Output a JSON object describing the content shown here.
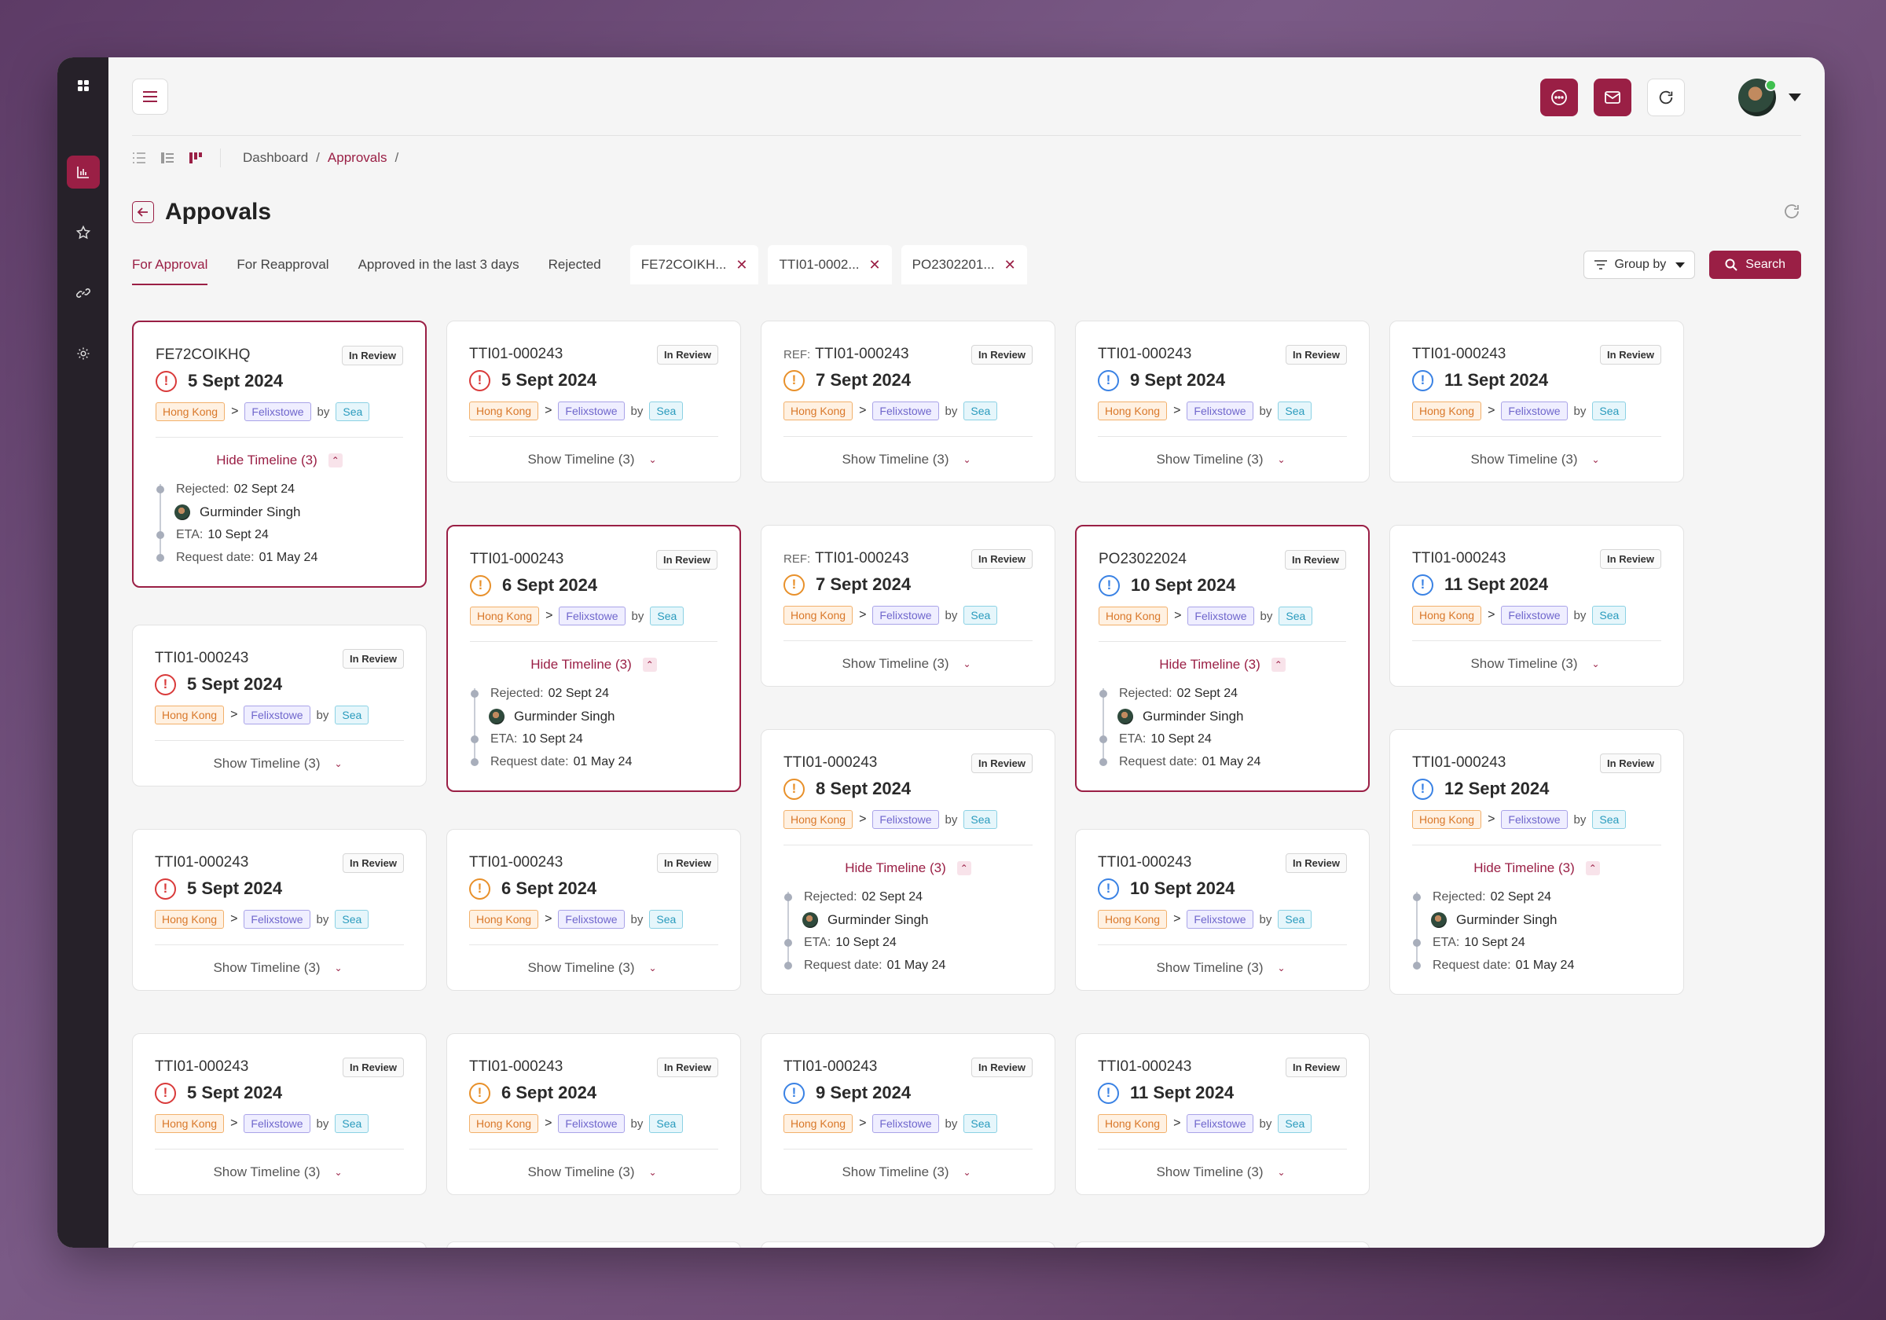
{
  "topbar": {
    "icons": [
      "chat-icon",
      "mail-icon",
      "refresh-icon"
    ]
  },
  "breadcrumb": {
    "items": [
      "Dashboard",
      "Approvals"
    ],
    "separator": "/"
  },
  "page": {
    "title": "Appovals"
  },
  "tabs": [
    {
      "label": "For Approval",
      "active": true
    },
    {
      "label": "For Reapproval",
      "active": false
    },
    {
      "label": "Approved in the last 3 days",
      "active": false
    },
    {
      "label": "Rejected",
      "active": false
    }
  ],
  "filter_tabs": [
    {
      "label": "FE72COIKH..."
    },
    {
      "label": "TTI01-0002..."
    },
    {
      "label": "PO2302201..."
    }
  ],
  "toolbar": {
    "group_by_label": "Group by",
    "search_label": "Search"
  },
  "card_common": {
    "status": "In Review",
    "origin": "Hong Kong",
    "destination": "Felixstowe",
    "by": "by",
    "mode": "Sea",
    "show_timeline": "Show Timeline (3)",
    "hide_timeline": "Hide Timeline (3)",
    "ref_prefix": "REF:"
  },
  "timeline": {
    "rejected_label": "Rejected:",
    "rejected_date": "02 Sept 24",
    "user": "Gurminder Singh",
    "eta_label": "ETA:",
    "eta_date": "10 Sept 24",
    "request_label": "Request date:",
    "request_date": "01 May 24"
  },
  "columns": [
    [
      {
        "id": "FE72COIKHQ",
        "ref": false,
        "date": "5 Sept 2024",
        "level": "red",
        "expanded": true,
        "selected": true
      },
      {
        "id": "TTI01-000243",
        "ref": false,
        "date": "5 Sept 2024",
        "level": "red",
        "expanded": false,
        "selected": false
      },
      {
        "id": "TTI01-000243",
        "ref": false,
        "date": "5 Sept 2024",
        "level": "red",
        "expanded": false,
        "selected": false
      },
      {
        "id": "TTI01-000243",
        "ref": false,
        "date": "5 Sept 2024",
        "level": "red",
        "expanded": false,
        "selected": false
      }
    ],
    [
      {
        "id": "TTI01-000243",
        "ref": false,
        "date": "5 Sept 2024",
        "level": "red",
        "expanded": false,
        "selected": false
      },
      {
        "id": "TTI01-000243",
        "ref": false,
        "date": "6 Sept 2024",
        "level": "orange",
        "expanded": true,
        "selected": true
      },
      {
        "id": "TTI01-000243",
        "ref": false,
        "date": "6 Sept 2024",
        "level": "orange",
        "expanded": false,
        "selected": false
      },
      {
        "id": "TTI01-000243",
        "ref": false,
        "date": "6 Sept 2024",
        "level": "orange",
        "expanded": false,
        "selected": false
      }
    ],
    [
      {
        "id": "TTI01-000243",
        "ref": true,
        "date": "7 Sept 2024",
        "level": "orange",
        "expanded": false,
        "selected": false
      },
      {
        "id": "TTI01-000243",
        "ref": true,
        "date": "7 Sept 2024",
        "level": "orange",
        "expanded": false,
        "selected": false
      },
      {
        "id": "TTI01-000243",
        "ref": false,
        "date": "8 Sept 2024",
        "level": "orange",
        "expanded": true,
        "selected": false
      },
      {
        "id": "TTI01-000243",
        "ref": false,
        "date": "9 Sept 2024",
        "level": "blue",
        "expanded": false,
        "selected": false
      }
    ],
    [
      {
        "id": "TTI01-000243",
        "ref": false,
        "date": "9 Sept 2024",
        "level": "blue",
        "expanded": false,
        "selected": false
      },
      {
        "id": "PO23022024",
        "ref": false,
        "date": "10 Sept 2024",
        "level": "blue",
        "expanded": true,
        "selected": true
      },
      {
        "id": "TTI01-000243",
        "ref": false,
        "date": "10 Sept 2024",
        "level": "blue",
        "expanded": false,
        "selected": false
      },
      {
        "id": "TTI01-000243",
        "ref": false,
        "date": "11 Sept 2024",
        "level": "blue",
        "expanded": false,
        "selected": false
      }
    ],
    [
      {
        "id": "TTI01-000243",
        "ref": false,
        "date": "11 Sept 2024",
        "level": "blue",
        "expanded": false,
        "selected": false
      },
      {
        "id": "TTI01-000243",
        "ref": false,
        "date": "11 Sept 2024",
        "level": "blue",
        "expanded": false,
        "selected": false
      },
      {
        "id": "TTI01-000243",
        "ref": false,
        "date": "12 Sept 2024",
        "level": "blue",
        "expanded": true,
        "selected": false
      }
    ]
  ],
  "colors": {
    "accent": "#9a1f45",
    "red": "#d93a3a",
    "orange": "#e8902a",
    "blue": "#3a82e4"
  }
}
